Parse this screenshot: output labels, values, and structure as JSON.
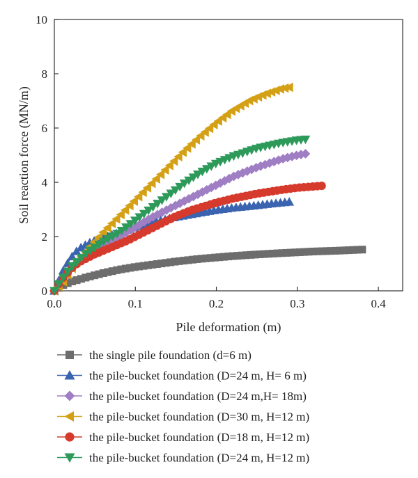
{
  "chart_data": {
    "type": "line",
    "xlabel": "Pile deformation (m)",
    "ylabel": "Soil reaction force (MN/m)",
    "xlim": [
      0,
      0.43
    ],
    "ylim": [
      0,
      10
    ],
    "xticks": [
      "0.0",
      "0.1",
      "0.2",
      "0.3",
      "0.4"
    ],
    "yticks": [
      "0",
      "2",
      "4",
      "6",
      "8",
      "10"
    ],
    "legend_position": "below",
    "series": [
      {
        "name": "the single pile foundation (d=6 m)",
        "color": "#6d6d6d",
        "marker": "square",
        "x": [
          0,
          0.01,
          0.02,
          0.04,
          0.06,
          0.08,
          0.1,
          0.12,
          0.15,
          0.18,
          0.2,
          0.22,
          0.25,
          0.28,
          0.3,
          0.32,
          0.35,
          0.38
        ],
        "y": [
          0,
          0.2,
          0.33,
          0.5,
          0.65,
          0.78,
          0.88,
          0.96,
          1.08,
          1.18,
          1.23,
          1.28,
          1.34,
          1.39,
          1.42,
          1.45,
          1.48,
          1.52
        ]
      },
      {
        "name": "the pile-bucket foundation (D=24 m, H= 6 m)",
        "color": "#3a63b0",
        "marker": "triangle-up",
        "x": [
          0,
          0.005,
          0.01,
          0.02,
          0.03,
          0.045,
          0.06,
          0.08,
          0.1,
          0.12,
          0.15,
          0.18,
          0.2,
          0.22,
          0.25,
          0.27,
          0.29
        ],
        "y": [
          0,
          0.35,
          0.7,
          1.2,
          1.55,
          1.8,
          1.95,
          2.15,
          2.35,
          2.52,
          2.72,
          2.88,
          2.98,
          3.06,
          3.15,
          3.22,
          3.28
        ]
      },
      {
        "name": "the pile-bucket foundation (D=24 m,H= 18m)",
        "color": "#9f7ec4",
        "marker": "diamond",
        "x": [
          0,
          0.01,
          0.02,
          0.04,
          0.06,
          0.08,
          0.1,
          0.12,
          0.15,
          0.18,
          0.2,
          0.22,
          0.25,
          0.28,
          0.3,
          0.31
        ],
        "y": [
          0,
          0.45,
          0.82,
          1.3,
          1.65,
          2.0,
          2.35,
          2.7,
          3.15,
          3.6,
          3.9,
          4.2,
          4.55,
          4.85,
          5.0,
          5.05
        ]
      },
      {
        "name": "the pile-bucket foundation (D=30 m, H=12 m)",
        "color": "#d4a116",
        "marker": "triangle-left",
        "x": [
          0,
          0.01,
          0.02,
          0.03,
          0.04,
          0.06,
          0.08,
          0.1,
          0.12,
          0.14,
          0.16,
          0.18,
          0.2,
          0.22,
          0.24,
          0.26,
          0.28,
          0.29
        ],
        "y": [
          0,
          0.3,
          0.75,
          1.15,
          1.5,
          2.15,
          2.75,
          3.35,
          3.95,
          4.55,
          5.15,
          5.7,
          6.2,
          6.65,
          7.0,
          7.25,
          7.45,
          7.5
        ]
      },
      {
        "name": "the pile-bucket foundation (D=18 m, H=12 m)",
        "color": "#d53a2c",
        "marker": "circle",
        "x": [
          0,
          0.01,
          0.02,
          0.03,
          0.05,
          0.07,
          0.09,
          0.11,
          0.13,
          0.15,
          0.17,
          0.2,
          0.22,
          0.25,
          0.28,
          0.3,
          0.33
        ],
        "y": [
          0,
          0.45,
          0.8,
          1.05,
          1.35,
          1.6,
          1.85,
          2.15,
          2.45,
          2.75,
          2.98,
          3.25,
          3.4,
          3.58,
          3.72,
          3.8,
          3.87
        ]
      },
      {
        "name": "the pile-bucket foundation (D=24 m, H=12 m)",
        "color": "#2e9a5a",
        "marker": "triangle-down",
        "x": [
          0,
          0.01,
          0.02,
          0.04,
          0.06,
          0.08,
          0.1,
          0.12,
          0.14,
          0.16,
          0.18,
          0.2,
          0.22,
          0.25,
          0.28,
          0.3,
          0.31
        ],
        "y": [
          0,
          0.45,
          0.85,
          1.4,
          1.8,
          2.15,
          2.6,
          3.05,
          3.5,
          3.95,
          4.35,
          4.7,
          4.95,
          5.25,
          5.45,
          5.55,
          5.58
        ]
      }
    ]
  }
}
